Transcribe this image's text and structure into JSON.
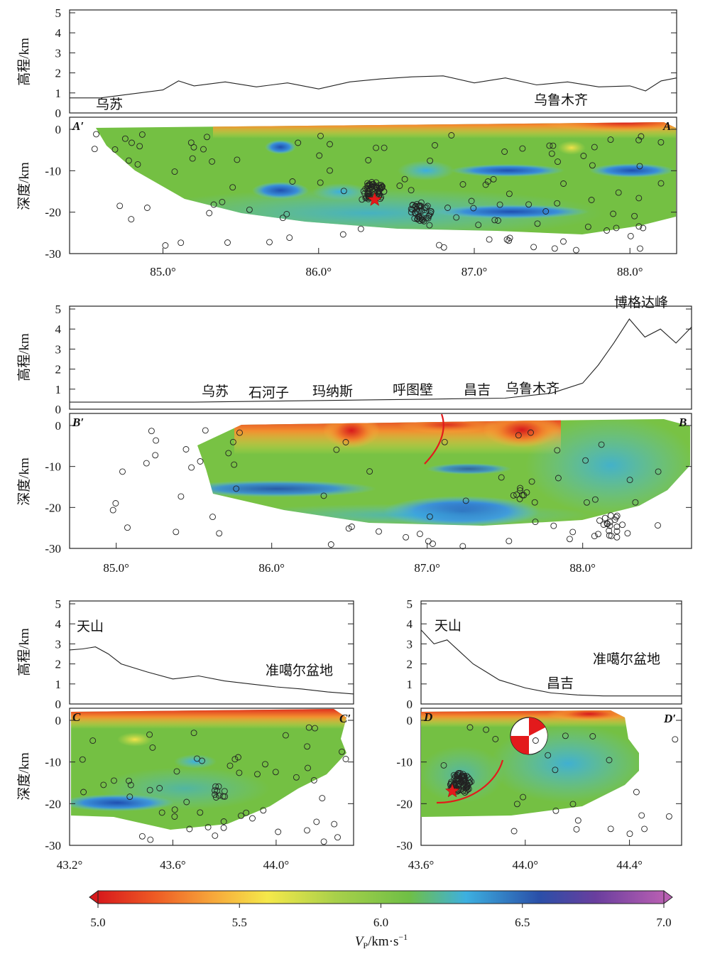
{
  "panels": [
    {
      "id": "A",
      "elev_ylabel": "高程/km",
      "depth_ylabel": "深度/km",
      "elev_ticks": [
        "5",
        "4",
        "3",
        "2",
        "1",
        "0"
      ],
      "depth_ticks": [
        "0",
        "-10",
        "-20",
        "-30"
      ],
      "x_ticks": [
        "85.0°",
        "86.0°",
        "87.0°",
        "88.0°"
      ],
      "corner_left": "A′",
      "corner_right": "A",
      "places": [
        "乌苏",
        "乌鲁木齐"
      ]
    },
    {
      "id": "B",
      "elev_ylabel": "高程/km",
      "depth_ylabel": "深度/km",
      "elev_ticks": [
        "5",
        "4",
        "3",
        "2",
        "1",
        "0"
      ],
      "depth_ticks": [
        "0",
        "-10",
        "-20",
        "-30"
      ],
      "x_ticks": [
        "85.0°",
        "86.0°",
        "87.0°",
        "88.0°"
      ],
      "corner_left": "B′",
      "corner_right": "B",
      "places": [
        "乌苏",
        "石河子",
        "玛纳斯",
        "呼图壁",
        "昌吉",
        "乌鲁木齐",
        "博格达峰"
      ]
    },
    {
      "id": "C",
      "elev_ylabel": "高程/km",
      "depth_ylabel": "深度/km",
      "elev_ticks": [
        "5",
        "4",
        "3",
        "2",
        "1",
        "0"
      ],
      "depth_ticks": [
        "0",
        "-10",
        "-20",
        "-30"
      ],
      "x_ticks": [
        "43.2°",
        "43.6°",
        "44.0°"
      ],
      "corner_left": "C",
      "corner_right": "C′",
      "places": [
        "天山",
        "准噶尔盆地"
      ]
    },
    {
      "id": "D",
      "elev_ylabel": "",
      "depth_ylabel": "",
      "elev_ticks": [
        "5",
        "4",
        "3",
        "2",
        "1",
        "0"
      ],
      "depth_ticks": [
        "0",
        "-10",
        "-20",
        "-30"
      ],
      "x_ticks": [
        "43.6°",
        "44.0°",
        "44.4°"
      ],
      "corner_left": "D",
      "corner_right": "D′",
      "places": [
        "天山",
        "准噶尔盆地",
        "昌吉"
      ]
    }
  ],
  "colorbar": {
    "ticks": [
      "5.0",
      "5.5",
      "6.0",
      "6.5",
      "7.0"
    ],
    "label_main": "V",
    "label_sub": "P",
    "label_unit": "/km·s",
    "label_exp": "−1",
    "colors": [
      "#d7191c",
      "#ee5a24",
      "#f6a53a",
      "#f5e94a",
      "#7cc242",
      "#3db0e0",
      "#2a4fa8",
      "#9b4fa8"
    ]
  },
  "chart_data": [
    {
      "type": "scatter",
      "id": "A",
      "xlim": [
        84.4,
        88.3
      ],
      "elev_ylim": [
        0,
        5
      ],
      "depth_ylim": [
        -30,
        0
      ],
      "elevation_profile": {
        "x": [
          84.4,
          84.6,
          84.8,
          85.0,
          85.1,
          85.2,
          85.4,
          85.6,
          85.8,
          86.0,
          86.2,
          86.4,
          86.6,
          86.8,
          87.0,
          87.2,
          87.4,
          87.6,
          87.8,
          88.0,
          88.1,
          88.2,
          88.3
        ],
        "elev": [
          0.75,
          0.75,
          0.95,
          1.15,
          1.6,
          1.35,
          1.55,
          1.3,
          1.5,
          1.2,
          1.55,
          1.7,
          1.8,
          1.85,
          1.5,
          1.75,
          1.4,
          1.55,
          1.3,
          1.35,
          1.1,
          1.6,
          1.75
        ]
      },
      "earthquake_clusters": [
        {
          "x": 86.35,
          "depth": -15,
          "count": 60
        },
        {
          "x": 86.65,
          "depth": -20,
          "count": 40
        }
      ],
      "mainshock": {
        "x": 86.36,
        "depth": -17
      }
    },
    {
      "type": "scatter",
      "id": "B",
      "xlim": [
        84.7,
        88.7
      ],
      "elev_ylim": [
        0,
        5
      ],
      "depth_ylim": [
        -30,
        0
      ],
      "elevation_profile": {
        "x": [
          84.7,
          85.5,
          86.0,
          86.5,
          87.0,
          87.5,
          87.8,
          88.0,
          88.1,
          88.2,
          88.3,
          88.4,
          88.5,
          88.6,
          88.7
        ],
        "elev": [
          0.35,
          0.35,
          0.4,
          0.45,
          0.5,
          0.55,
          0.8,
          1.3,
          2.2,
          3.3,
          4.5,
          3.6,
          4.0,
          3.3,
          4.1
        ]
      },
      "earthquake_clusters": [
        {
          "x": 87.6,
          "depth": -17,
          "count": 6
        },
        {
          "x": 88.2,
          "depth": -25,
          "count": 20
        }
      ]
    },
    {
      "type": "scatter",
      "id": "C",
      "xlim": [
        43.2,
        44.3
      ],
      "elev_ylim": [
        0,
        5
      ],
      "depth_ylim": [
        -30,
        0
      ],
      "elevation_profile": {
        "x": [
          43.2,
          43.25,
          43.3,
          43.35,
          43.4,
          43.5,
          43.6,
          43.7,
          43.8,
          43.9,
          44.0,
          44.1,
          44.2,
          44.3
        ],
        "elev": [
          2.7,
          2.75,
          2.85,
          2.5,
          2.0,
          1.6,
          1.25,
          1.4,
          1.15,
          1.0,
          0.85,
          0.75,
          0.6,
          0.5
        ]
      },
      "earthquake_clusters": [
        {
          "x": 43.78,
          "depth": -17,
          "count": 10
        }
      ]
    },
    {
      "type": "scatter",
      "id": "D",
      "xlim": [
        43.6,
        44.6
      ],
      "elev_ylim": [
        0,
        5
      ],
      "depth_ylim": [
        -30,
        0
      ],
      "elevation_profile": {
        "x": [
          43.6,
          43.65,
          43.7,
          43.75,
          43.8,
          43.85,
          43.9,
          44.0,
          44.1,
          44.2,
          44.3,
          44.4,
          44.5,
          44.6
        ],
        "elev": [
          3.7,
          3.0,
          3.2,
          2.6,
          2.0,
          1.6,
          1.2,
          0.8,
          0.55,
          0.45,
          0.4,
          0.4,
          0.4,
          0.4
        ]
      },
      "earthquake_clusters": [
        {
          "x": 43.75,
          "depth": -15,
          "count": 80
        }
      ],
      "mainshock": {
        "x": 43.72,
        "depth": -17
      }
    }
  ]
}
